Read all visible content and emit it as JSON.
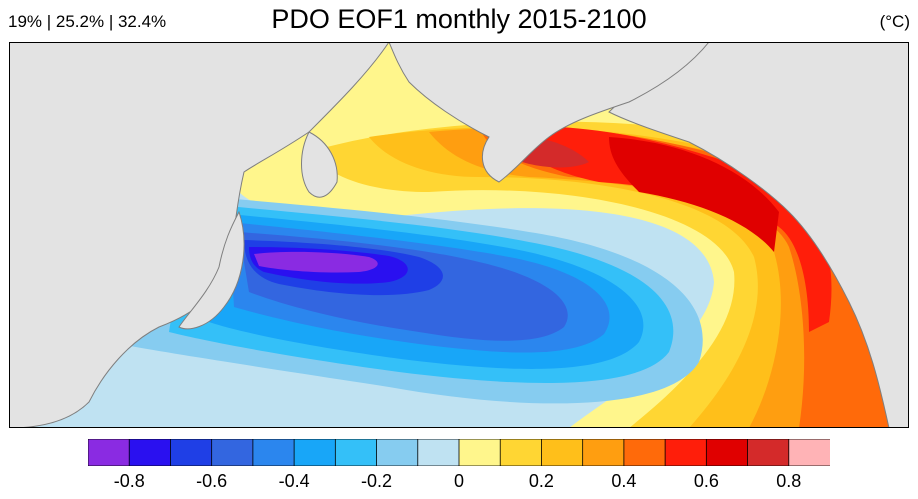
{
  "header": {
    "stats": "19% | 25.2% | 32.4%",
    "title": "PDO EOF1 monthly 2015-2100",
    "units": "(°C)"
  },
  "legend": {
    "colors": [
      "#8a2be2",
      "#2a10f0",
      "#1f3fe6",
      "#3366e0",
      "#2b86ee",
      "#18a6f8",
      "#34c0f8",
      "#86ccf0",
      "#bfe2f2",
      "#fff68c",
      "#ffd633",
      "#ffbf1a",
      "#ff9e10",
      "#ff6a0a",
      "#ff1e0a",
      "#e00000",
      "#d42a2a",
      "#ffb3b6"
    ],
    "tick_labels": [
      "-0.8",
      "-0.6",
      "-0.4",
      "-0.2",
      "0",
      "0.2",
      "0.4",
      "0.6",
      "0.8"
    ]
  },
  "map": {
    "land_color": "#e3e3e3",
    "coast_color": "#7f7f7f",
    "background_anomaly_color": "#bfe2f2"
  }
}
